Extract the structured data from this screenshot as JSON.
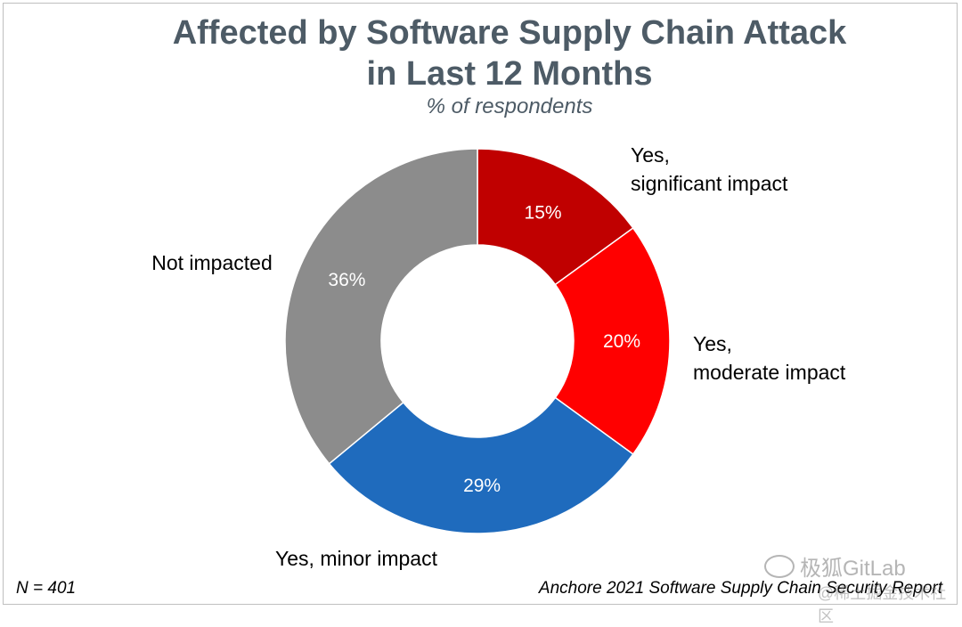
{
  "chart_data": {
    "type": "pie",
    "donut": true,
    "title_line1": "Affected by Software Supply Chain Attack",
    "title_line2": "in Last 12 Months",
    "subtitle": "% of respondents",
    "slices": [
      {
        "label_line1": "Yes,",
        "label_line2": "significant impact",
        "value": 15,
        "value_label": "15%",
        "color": "#c00000"
      },
      {
        "label_line1": "Yes,",
        "label_line2": "moderate impact",
        "value": 20,
        "value_label": "20%",
        "color": "#ff0000"
      },
      {
        "label_line1": "Yes, minor impact",
        "label_line2": "",
        "value": 29,
        "value_label": "29%",
        "color": "#1f6bbd"
      },
      {
        "label_line1": "Not impacted",
        "label_line2": "",
        "value": 36,
        "value_label": "36%",
        "color": "#8c8c8c"
      }
    ]
  },
  "footer": {
    "n_text": "N = 401",
    "source": "Anchore 2021 Software Supply Chain Security Report"
  },
  "watermark": {
    "text": "极狐GitLab",
    "subtext": "@稀土掘金技术社区"
  }
}
